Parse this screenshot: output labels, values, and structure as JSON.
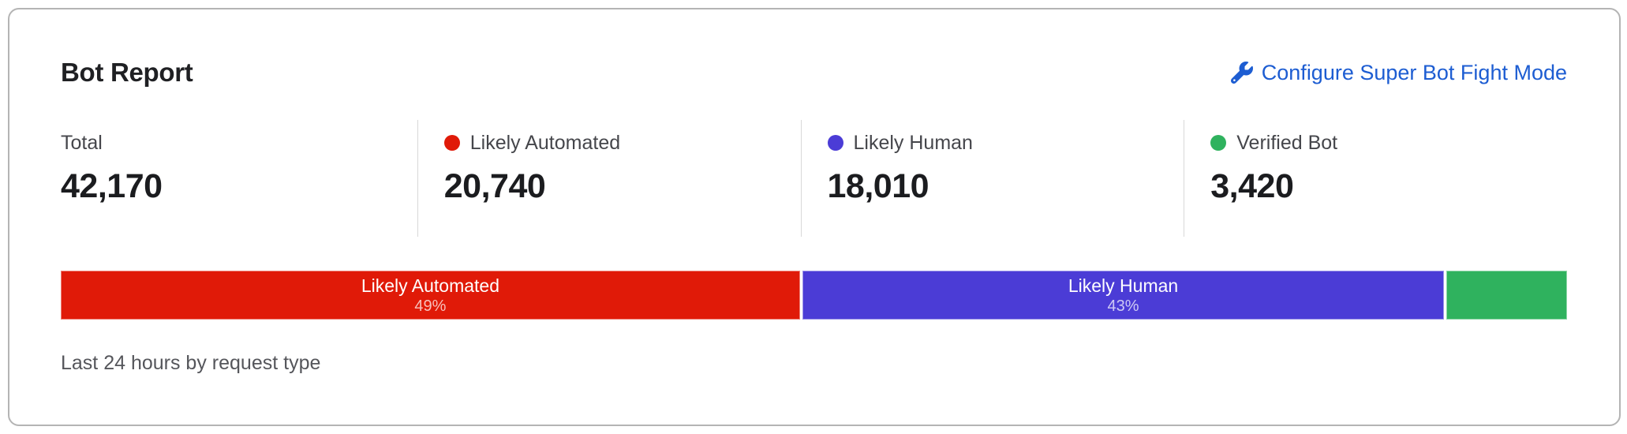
{
  "card": {
    "title": "Bot Report",
    "configure_link": {
      "label": "Configure Super Bot Fight Mode",
      "icon": "wrench-icon"
    },
    "caption": "Last 24 hours by request type"
  },
  "stats": [
    {
      "label": "Total",
      "value": "42,170",
      "dot_color": null
    },
    {
      "label": "Likely Automated",
      "value": "20,740",
      "dot_color": "#e01a08"
    },
    {
      "label": "Likely Human",
      "value": "18,010",
      "dot_color": "#4b3cd6"
    },
    {
      "label": "Verified Bot",
      "value": "3,420",
      "dot_color": "#2fb25e"
    }
  ],
  "chart_data": {
    "type": "bar",
    "variant": "stacked-horizontal",
    "title": "Bot Report",
    "caption": "Last 24 hours by request type",
    "total": 42170,
    "segments": [
      {
        "name": "Likely Automated",
        "value": 20740,
        "percent_label": "49%",
        "color": "#e01a08",
        "label_visible": true
      },
      {
        "name": "Likely Human",
        "value": 18010,
        "percent_label": "43%",
        "color": "#4b3cd6",
        "label_visible": true
      },
      {
        "name": "Verified Bot",
        "value": 3420,
        "percent_label": "",
        "color": "#2fb25e",
        "label_visible": false
      }
    ]
  },
  "colors": {
    "link_blue": "#1d5dd2",
    "likely_automated_red": "#e01a08",
    "likely_human_indigo": "#4b3cd6",
    "verified_bot_green": "#2fb25e",
    "card_border": "#b4b4b4",
    "divider": "#d8d8d8"
  }
}
